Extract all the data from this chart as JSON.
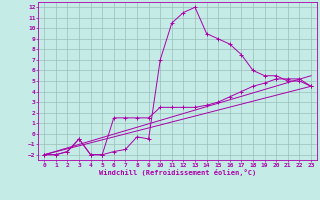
{
  "xlabel": "Windchill (Refroidissement éolien,°C)",
  "xlim": [
    -0.5,
    23.5
  ],
  "ylim": [
    -2.5,
    12.5
  ],
  "xticks": [
    0,
    1,
    2,
    3,
    4,
    5,
    6,
    7,
    8,
    9,
    10,
    11,
    12,
    13,
    14,
    15,
    16,
    17,
    18,
    19,
    20,
    21,
    22,
    23
  ],
  "yticks": [
    -2,
    -1,
    0,
    1,
    2,
    3,
    4,
    5,
    6,
    7,
    8,
    9,
    10,
    11,
    12
  ],
  "bg_color": "#c5ebe7",
  "line_color": "#aa00aa",
  "grid_color": "#9bbfbb",
  "line1_x": [
    0,
    1,
    2,
    3,
    4,
    5,
    6,
    7,
    8,
    9,
    10,
    11,
    12,
    13,
    14,
    15,
    16,
    17,
    18,
    19,
    20,
    21,
    22,
    23
  ],
  "line1_y": [
    -2,
    -2,
    -1.7,
    -0.5,
    -2,
    -2,
    -1.7,
    -1.5,
    -0.3,
    -0.5,
    7,
    10.5,
    11.5,
    12,
    9.5,
    9,
    8.5,
    7.5,
    6,
    5.5,
    5.5,
    5,
    5,
    4.5
  ],
  "line2_x": [
    0,
    1,
    2,
    3,
    4,
    5,
    6,
    7,
    8,
    9,
    10,
    11,
    12,
    13,
    14,
    15,
    16,
    17,
    18,
    19,
    20,
    21,
    22,
    23
  ],
  "line2_y": [
    -2,
    -2,
    -1.7,
    -0.5,
    -2,
    -2,
    1.5,
    1.5,
    1.5,
    1.5,
    2.5,
    2.5,
    2.5,
    2.5,
    2.7,
    3.0,
    3.5,
    4.0,
    4.5,
    4.8,
    5.2,
    5.2,
    5.2,
    4.5
  ],
  "line3_x": [
    0,
    23
  ],
  "line3_y": [
    -2,
    4.5
  ],
  "line4_x": [
    0,
    23
  ],
  "line4_y": [
    -2,
    5.5
  ]
}
